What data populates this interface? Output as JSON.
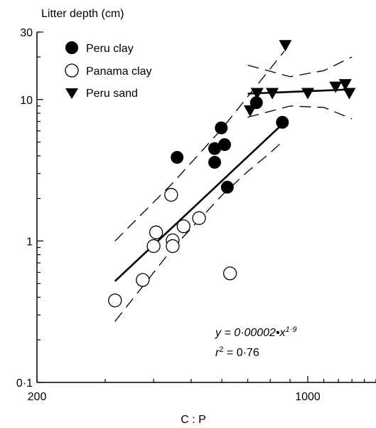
{
  "chart_data": {
    "type": "scatter",
    "ylabel": "Litter depth (cm)",
    "xlabel": "C : P",
    "x_scale": "log",
    "y_scale": "log",
    "xlim": [
      200,
      1500
    ],
    "ylim": [
      0.1,
      30
    ],
    "x_tick_labels": [
      {
        "value": 200,
        "label": "200"
      },
      {
        "value": 1000,
        "label": "1000"
      }
    ],
    "y_tick_labels": [
      {
        "value": 0.1,
        "label": "0·1"
      },
      {
        "value": 1,
        "label": "1"
      },
      {
        "value": 10,
        "label": "10"
      },
      {
        "value": 30,
        "label": "30"
      }
    ],
    "legend_position": "top-left",
    "series": [
      {
        "name": "Peru clay",
        "marker": "filled-circle",
        "points": [
          {
            "x": 460,
            "y": 3.9
          },
          {
            "x": 575,
            "y": 4.5
          },
          {
            "x": 575,
            "y": 3.6
          },
          {
            "x": 598,
            "y": 6.3
          },
          {
            "x": 610,
            "y": 4.8
          },
          {
            "x": 620,
            "y": 2.4
          },
          {
            "x": 737,
            "y": 9.5
          },
          {
            "x": 860,
            "y": 6.9
          }
        ]
      },
      {
        "name": "Panama clay",
        "marker": "open-circle",
        "points": [
          {
            "x": 318,
            "y": 0.38
          },
          {
            "x": 375,
            "y": 0.53
          },
          {
            "x": 400,
            "y": 0.92
          },
          {
            "x": 406,
            "y": 1.15
          },
          {
            "x": 444,
            "y": 2.12
          },
          {
            "x": 448,
            "y": 1.01
          },
          {
            "x": 448,
            "y": 0.92
          },
          {
            "x": 478,
            "y": 1.27
          },
          {
            "x": 524,
            "y": 1.45
          },
          {
            "x": 630,
            "y": 0.59
          }
        ]
      },
      {
        "name": "Peru sand",
        "marker": "filled-triangle-down",
        "points": [
          {
            "x": 710,
            "y": 8.3
          },
          {
            "x": 740,
            "y": 11.0
          },
          {
            "x": 810,
            "y": 11.0
          },
          {
            "x": 875,
            "y": 24.0
          },
          {
            "x": 1000,
            "y": 11.0
          },
          {
            "x": 1180,
            "y": 12.2
          },
          {
            "x": 1250,
            "y": 12.7
          },
          {
            "x": 1280,
            "y": 11.0
          }
        ]
      }
    ],
    "fit_line": {
      "x": [
        318,
        870
      ],
      "y": [
        0.52,
        6.9
      ]
    },
    "confidence_band_upper": {
      "x": [
        318,
        450,
        600,
        700,
        800,
        870
      ],
      "y": [
        1.0,
        2.6,
        6.2,
        10.5,
        16.5,
        22.0
      ]
    },
    "confidence_band_lower": {
      "x": [
        318,
        450,
        600,
        700,
        800,
        870
      ],
      "y": [
        0.27,
        0.9,
        2.1,
        3.1,
        4.2,
        5.2
      ]
    },
    "sand_fit": {
      "x": [
        700,
        1300
      ],
      "y": [
        11.0,
        11.8
      ]
    },
    "sand_band_upper": {
      "x": [
        700,
        900,
        1100,
        1300
      ],
      "y": [
        17.5,
        14.5,
        16.0,
        20.0
      ]
    },
    "sand_band_lower": {
      "x": [
        700,
        900,
        1100,
        1300
      ],
      "y": [
        7.5,
        9.0,
        8.8,
        7.3
      ]
    },
    "annotations": {
      "equation_prefix": "y = 0·00002•x",
      "equation_exponent": "1·9",
      "r2_prefix": "r",
      "r2_exp": "2",
      "r2_suffix": " = 0·76"
    }
  }
}
